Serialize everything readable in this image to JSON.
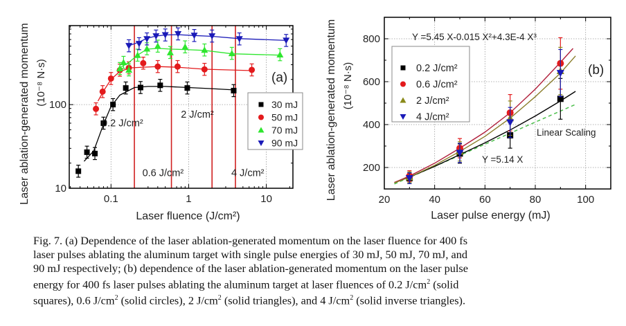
{
  "chart_data": [
    {
      "type": "scatter",
      "panel_label": "(a)",
      "xscale": "log",
      "yscale": "log",
      "xlabel": "Laser fluence (J/cm²)",
      "ylabel": "Laser ablation-generated momentum",
      "ylabel_units": "(10⁻⁸ N·s)",
      "xlim": [
        0.029,
        22
      ],
      "ylim": [
        10,
        880
      ],
      "xticks": [
        {
          "v": 0.1,
          "label": "0.1"
        },
        {
          "v": 1,
          "label": "1"
        },
        {
          "v": 10,
          "label": "10"
        }
      ],
      "yticks": [
        {
          "v": 10,
          "label": "10"
        },
        {
          "v": 100,
          "label": "100"
        }
      ],
      "grid": true,
      "legend_position": "right-middle",
      "vertical_lines": [
        {
          "x": 0.2,
          "label": "0.2 J/cm²",
          "label_at_y": 55
        },
        {
          "x": 0.6,
          "label": "0.6 J/cm²",
          "label_at_y": 14
        },
        {
          "x": 2,
          "label": "2 J/cm²",
          "label_at_y": 70
        },
        {
          "x": 4,
          "label": "4 J/cm²",
          "label_at_y": 14
        }
      ],
      "series": [
        {
          "name": "30 mJ",
          "marker": "square",
          "color": "#000000",
          "x": [
            0.038,
            0.049,
            0.062,
            0.08,
            0.106,
            0.155,
            0.24,
            0.43,
            0.96,
            3.8
          ],
          "y": [
            16,
            27,
            26,
            60,
            100,
            158,
            160,
            170,
            158,
            147
          ],
          "fit_x": [
            0.045,
            0.06,
            0.08,
            0.1,
            0.13,
            0.2,
            0.3,
            0.5,
            1,
            2,
            3.8
          ],
          "fit_y": [
            21,
            28,
            58,
            95,
            130,
            160,
            165,
            165,
            160,
            155,
            150
          ]
        },
        {
          "name": "50 mJ",
          "marker": "circle",
          "color": "#e31a1c",
          "x": [
            0.064,
            0.078,
            0.1,
            0.13,
            0.17,
            0.26,
            0.4,
            0.72,
            1.6,
            6.5
          ],
          "y": [
            89,
            143,
            205,
            258,
            275,
            313,
            285,
            285,
            264,
            260
          ],
          "fit_x": [
            0.068,
            0.08,
            0.1,
            0.13,
            0.18,
            0.26,
            0.4,
            0.72,
            1.6,
            6.5
          ],
          "fit_y": [
            110,
            145,
            200,
            250,
            275,
            280,
            285,
            280,
            265,
            255
          ]
        },
        {
          "name": "70 mJ",
          "marker": "triangle-up",
          "color": "#2ee62e",
          "x": [
            0.13,
            0.145,
            0.17,
            0.22,
            0.29,
            0.4,
            0.58,
            0.9,
            1.6,
            3.6,
            15
          ],
          "y": [
            270,
            320,
            260,
            390,
            465,
            500,
            420,
            490,
            450,
            410,
            395
          ],
          "fit_x": [
            0.13,
            0.17,
            0.22,
            0.29,
            0.4,
            0.6,
            0.9,
            1.6,
            3.6,
            15
          ],
          "fit_y": [
            275,
            320,
            390,
            460,
            470,
            460,
            455,
            445,
            405,
            390
          ]
        },
        {
          "name": "90 mJ",
          "marker": "triangle-down",
          "color": "#1a1ab8",
          "x": [
            0.17,
            0.23,
            0.29,
            0.38,
            0.5,
            0.73,
            1.18,
            2,
            4.5,
            18
          ],
          "y": [
            505,
            535,
            610,
            660,
            680,
            700,
            670,
            660,
            610,
            585
          ],
          "fit_x": [
            0.17,
            0.23,
            0.29,
            0.38,
            0.5,
            0.73,
            1.18,
            2,
            4.5,
            18
          ],
          "fit_y": [
            505,
            560,
            620,
            660,
            680,
            685,
            670,
            655,
            615,
            585
          ]
        }
      ]
    },
    {
      "type": "scatter",
      "panel_label": "(b)",
      "xlabel": "Laser pulse energy (mJ)",
      "ylabel": "Laser ablation-generated momentum",
      "ylabel_units": "(10⁻⁸ N·s)",
      "xlim": [
        20,
        110
      ],
      "ylim": [
        100,
        900
      ],
      "xticks": [
        20,
        40,
        60,
        80,
        100
      ],
      "yticks": [
        200,
        400,
        600,
        800
      ],
      "grid": true,
      "legend_position": "top-left",
      "annotations": [
        {
          "text": "Y =5.45 X-0.015 X²+4.3E-4 X³",
          "x": 55,
          "y": 800
        },
        {
          "text": "Y =5.14 X",
          "x": 66,
          "y": 240
        },
        {
          "text": "Linear Scaling",
          "x": 93,
          "y": 375
        }
      ],
      "series": [
        {
          "name": "0.2 J/cm²",
          "marker": "square",
          "color": "#000000",
          "x": [
            30,
            50,
            70,
            90
          ],
          "y": [
            150,
            265,
            350,
            520
          ],
          "err": [
            25,
            45,
            60,
            95
          ],
          "fit_color": "#000000",
          "fit_x": [
            24,
            30,
            40,
            50,
            60,
            70,
            80,
            90,
            96
          ],
          "fit_y": [
            130,
            155,
            205,
            260,
            315,
            375,
            440,
            510,
            555
          ]
        },
        {
          "name": "0.6 J/cm²",
          "marker": "circle",
          "color": "#e31a1c",
          "x": [
            30,
            50,
            70,
            90
          ],
          "y": [
            160,
            290,
            455,
            685
          ],
          "err": [
            25,
            45,
            85,
            120
          ],
          "fit_color": "#b01e3a",
          "fit_x": [
            24,
            30,
            40,
            50,
            60,
            70,
            80,
            90,
            95
          ],
          "fit_y": [
            130,
            160,
            220,
            290,
            365,
            455,
            565,
            690,
            755
          ]
        },
        {
          "name": "2 J/cm²",
          "marker": "triangle-up",
          "color": "#8a8a1a",
          "x": [
            30,
            50,
            70,
            90
          ],
          "y": [
            155,
            275,
            430,
            650
          ],
          "err": [
            25,
            45,
            80,
            110
          ],
          "fit_color": "#8a7d2a",
          "fit_x": [
            24,
            30,
            40,
            50,
            60,
            70,
            80,
            90,
            96
          ],
          "fit_y": [
            128,
            155,
            210,
            275,
            345,
            430,
            530,
            640,
            720
          ]
        },
        {
          "name": "4 J/cm²",
          "marker": "triangle-down",
          "color": "#1a1ab8",
          "x": [
            30,
            50,
            70,
            90
          ],
          "y": [
            150,
            268,
            410,
            640
          ],
          "err": [
            25,
            45,
            70,
            110
          ]
        }
      ],
      "linear_scaling": {
        "name": "Linear Scaling",
        "color": "#4cbf4c",
        "x": [
          24,
          96
        ],
        "y": [
          123,
          494
        ]
      }
    }
  ],
  "caption": {
    "lines": [
      [
        {
          "t": "Fig. 7. (a) Dependence of the laser ablation-generated momentum on the laser fluence for 400 fs"
        }
      ],
      [
        {
          "t": "laser pulses ablating the aluminum target with single pulse energies of 30 mJ, 50 mJ, 70 mJ, and"
        }
      ],
      [
        {
          "t": "90 mJ respectively; (b) dependence of the laser ablation-generated momentum on the laser pulse"
        }
      ],
      [
        {
          "t": "energy for 400 fs laser pulses ablating the aluminum target at laser fluences of 0.2 J/cm"
        },
        {
          "sup": "2"
        },
        {
          "t": " (solid"
        }
      ],
      [
        {
          "t": "squares), 0.6 J/cm"
        },
        {
          "sup": "2"
        },
        {
          "t": " (solid circles), 2 J/cm"
        },
        {
          "sup": "2"
        },
        {
          "t": " (solid triangles), and 4 J/cm"
        },
        {
          "sup": "2"
        },
        {
          "t": " (solid inverse triangles)."
        }
      ]
    ]
  }
}
